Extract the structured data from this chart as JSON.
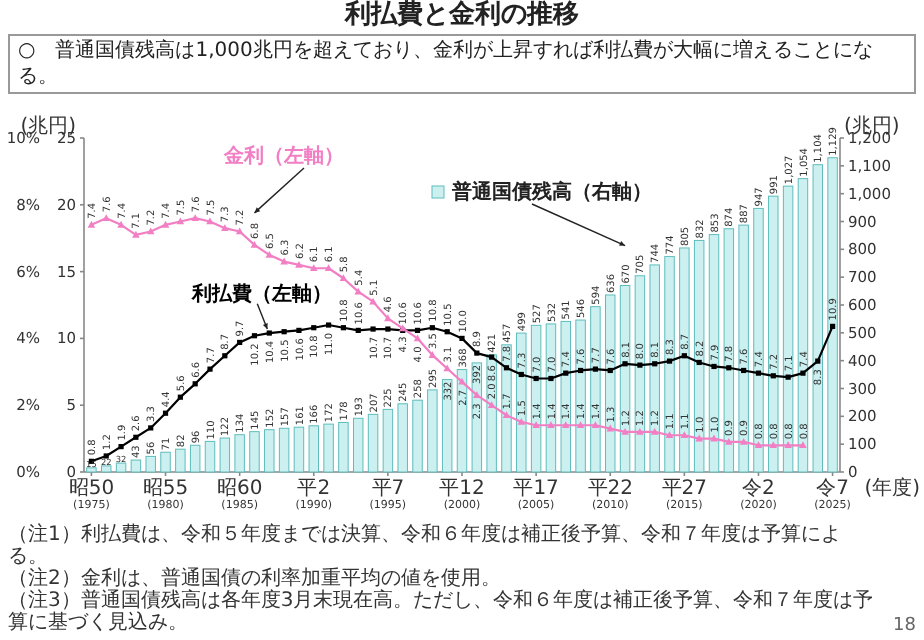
{
  "chart_data": {
    "type": "bar",
    "title": "利払費と金利の推移",
    "subtitle": "○　普通国債残高は1,000兆円を超えており、金利が上昇すれば利払費が大幅に増えることになる。",
    "xlabel": "(年度)",
    "categories": [
      "昭50\n(1975)",
      null,
      null,
      null,
      null,
      "昭55\n(1980)",
      null,
      null,
      null,
      null,
      "昭60\n(1985)",
      null,
      null,
      null,
      null,
      "平2\n(1990)",
      null,
      null,
      null,
      null,
      "平7\n(1995)",
      null,
      null,
      null,
      null,
      "平12\n(2000)",
      null,
      null,
      null,
      null,
      "平17\n(2005)",
      null,
      null,
      null,
      null,
      "平22\n(2010)",
      null,
      null,
      null,
      null,
      "平27\n(2015)",
      null,
      null,
      null,
      null,
      "令2\n(2020)",
      null,
      null,
      null,
      null,
      "令7\n(2025)"
    ],
    "series": [
      {
        "name": "普通国債残高（右軸）",
        "axis": "y2",
        "color": "#ccf0f0",
        "values": [
          15,
          22,
          32,
          43,
          56,
          71,
          82,
          96,
          110,
          122,
          134,
          145,
          152,
          157,
          161,
          166,
          172,
          178,
          193,
          207,
          225,
          245,
          258,
          295,
          332,
          368,
          392,
          421,
          457,
          499,
          527,
          532,
          541,
          546,
          594,
          636,
          670,
          705,
          744,
          774,
          805,
          832,
          853,
          874,
          887,
          947,
          991,
          1027,
          1054,
          1104,
          1129
        ],
        "value_labels": [
          "15",
          "22",
          "32",
          "43",
          "56",
          "71",
          "82",
          "96",
          "110",
          "122",
          "134",
          "145",
          "152",
          "157",
          "161",
          "166",
          "172",
          "178",
          "193",
          "207",
          "225",
          "245",
          "258",
          "295",
          "332",
          "368",
          "392",
          "421",
          "457",
          "499",
          "527",
          "532",
          "541",
          "546",
          "594",
          "636",
          "670",
          "705",
          "744",
          "774",
          "805",
          "832",
          "853",
          "874",
          "887",
          "947",
          "991",
          "1,027",
          "1,054",
          "1,104",
          "1,129"
        ]
      },
      {
        "name": "利払費（左軸）",
        "type": "line",
        "axis": "y3",
        "color": "#000000",
        "marker": "square",
        "values": [
          0.8,
          1.2,
          1.9,
          2.6,
          3.3,
          4.4,
          5.6,
          6.6,
          7.7,
          8.7,
          9.7,
          10.2,
          10.4,
          10.5,
          10.6,
          10.8,
          11.0,
          10.8,
          10.6,
          10.7,
          10.7,
          10.6,
          10.6,
          10.8,
          10.5,
          10.0,
          8.9,
          8.6,
          7.8,
          7.3,
          7.0,
          7.0,
          7.4,
          7.6,
          7.7,
          7.6,
          8.1,
          8.0,
          8.1,
          8.3,
          8.7,
          8.2,
          7.9,
          7.8,
          7.6,
          7.4,
          7.2,
          7.1,
          7.4,
          8.3,
          10.9
        ],
        "value_labels": [
          "0.8",
          "1.2",
          "1.9",
          "2.6",
          "3.3",
          "4.4",
          "5.6",
          "6.6",
          "7.7",
          "8.7",
          "9.7",
          "10.2",
          "10.4",
          "10.5",
          "10.6",
          "10.8",
          "11.0",
          "10.8",
          "10.6",
          "10.7",
          "10.7",
          "10.6",
          "10.6",
          "10.8",
          "10.5",
          "10.0",
          "8.9",
          "8.6",
          "7.8",
          "7.3",
          "7.0",
          "7.0",
          "7.4",
          "7.6",
          "7.7",
          "7.6",
          "8.1",
          "8.0",
          "8.1",
          "8.3",
          "8.7",
          "8.2",
          "7.9",
          "7.8",
          "7.6",
          "7.4",
          "7.2",
          "7.1",
          "7.4",
          "8.3",
          "10.9"
        ]
      },
      {
        "name": "金利（左軸）",
        "type": "line",
        "axis": "y",
        "color": "#f27fc4",
        "marker": "triangle",
        "values": [
          7.4,
          7.6,
          7.4,
          7.1,
          7.2,
          7.4,
          7.5,
          7.6,
          7.5,
          7.3,
          7.2,
          6.8,
          6.5,
          6.3,
          6.2,
          6.1,
          6.1,
          5.8,
          5.4,
          5.1,
          4.6,
          4.3,
          4.0,
          3.5,
          3.1,
          2.7,
          2.3,
          2.0,
          1.7,
          1.5,
          1.4,
          1.4,
          1.4,
          1.4,
          1.4,
          1.3,
          1.2,
          1.2,
          1.2,
          1.1,
          1.1,
          1.0,
          1.0,
          0.9,
          0.9,
          0.8,
          0.8,
          0.8,
          0.8,
          null,
          null
        ],
        "value_labels": [
          "7.4",
          "7.6",
          "7.4",
          "7.1",
          "7.2",
          "7.4",
          "7.5",
          "7.6",
          "7.5",
          "7.3",
          "7.2",
          "6.8",
          "6.5",
          "6.3",
          "6.2",
          "6.1",
          "6.1",
          "5.8",
          "5.4",
          "5.1",
          "4.6",
          "4.3",
          "4.0",
          "3.5",
          "3.1",
          "2.7",
          "2.3",
          "2.0",
          "1.7",
          "1.5",
          "1.4",
          "1.4",
          "1.4",
          "1.4",
          "1.4",
          "1.3",
          "1.2",
          "1.2",
          "1.2",
          "1.1",
          "1.1",
          "1.0",
          "1.0",
          "0.9",
          "0.9",
          "0.8",
          "0.8",
          "0.8",
          "0.8",
          null,
          null
        ]
      }
    ],
    "ylim": [
      0,
      10
    ],
    "yticks": [
      {
        "value": 0,
        "label": "0%"
      },
      {
        "value": 2,
        "label": "2%"
      },
      {
        "value": 4,
        "label": "4%"
      },
      {
        "value": 6,
        "label": "6%"
      },
      {
        "value": 8,
        "label": "8%"
      },
      {
        "value": 10,
        "label": "10%"
      }
    ],
    "y3lim": [
      0,
      25
    ],
    "y3ticks": [
      0,
      5,
      10,
      15,
      20,
      25
    ],
    "y3label": "(兆円)",
    "y2lim": [
      0,
      1200
    ],
    "y2ticks": [
      0,
      100,
      200,
      300,
      400,
      500,
      600,
      700,
      800,
      900,
      {
        "value": 1000,
        "label": "1,000"
      },
      {
        "value": 1100,
        "label": "1,100"
      },
      {
        "value": 1200,
        "label": "1,200"
      }
    ],
    "y2label": "(兆円)",
    "annotations": [
      "（注1）利払費は、令和５年度までは決算、令和６年度は補正後予算、令和７年度は予算による。",
      "（注2）金利は、普通国債の利率加重平均の値を使用。",
      "（注3）普通国債残高は各年度3月末現在高。ただし、令和６年度は補正後予算、令和７年度は予算に基づく見込み。",
      "18"
    ]
  }
}
